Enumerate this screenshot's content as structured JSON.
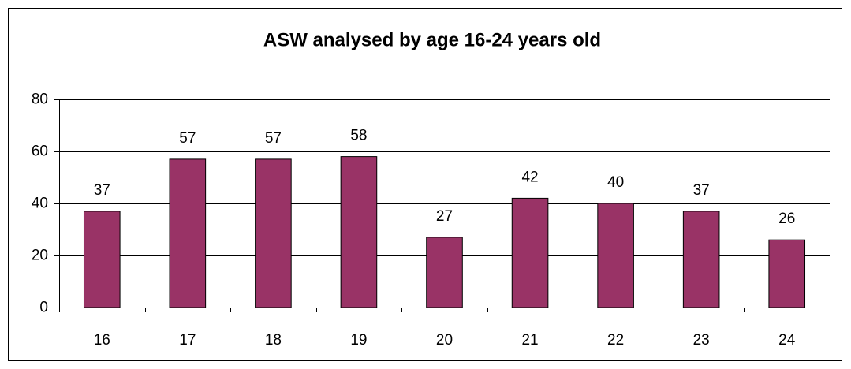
{
  "chart_data": {
    "type": "bar",
    "title": "ASW analysed by age 16-24 years old",
    "categories": [
      "16",
      "17",
      "18",
      "19",
      "20",
      "21",
      "22",
      "23",
      "24"
    ],
    "values": [
      37,
      57,
      57,
      58,
      27,
      42,
      40,
      37,
      26
    ],
    "color": "#993366",
    "ylim": [
      0,
      80
    ],
    "yticks": [
      0,
      20,
      40,
      60,
      80
    ],
    "grid": true,
    "data_labels": true
  }
}
